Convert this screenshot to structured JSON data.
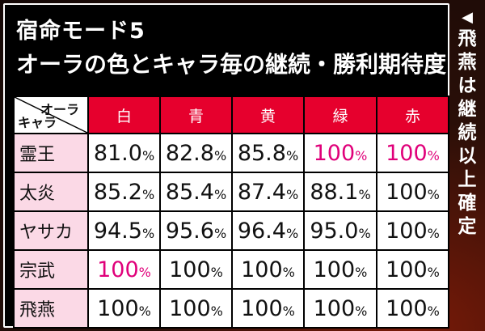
{
  "title_line1": "宿命モード5",
  "title_line2": "オーラの色とキャラ毎の継続・勝利期待度",
  "corner": {
    "aura_label": "オーラ",
    "chara_label": "キャラ"
  },
  "columns": [
    "白",
    "青",
    "黄",
    "緑",
    "赤"
  ],
  "rows": [
    {
      "label": "霊王",
      "cells": [
        {
          "num": "81.0",
          "pct": "%",
          "hot": false
        },
        {
          "num": "82.8",
          "pct": "%",
          "hot": false
        },
        {
          "num": "85.8",
          "pct": "%",
          "hot": false
        },
        {
          "num": "100",
          "pct": "%",
          "hot": true
        },
        {
          "num": "100",
          "pct": "%",
          "hot": true
        }
      ]
    },
    {
      "label": "太炎",
      "cells": [
        {
          "num": "85.2",
          "pct": "%",
          "hot": false
        },
        {
          "num": "85.4",
          "pct": "%",
          "hot": false
        },
        {
          "num": "87.4",
          "pct": "%",
          "hot": false
        },
        {
          "num": "88.1",
          "pct": "%",
          "hot": false
        },
        {
          "num": "100",
          "pct": "%",
          "hot": false
        }
      ]
    },
    {
      "label": "ヤサカ",
      "cells": [
        {
          "num": "94.5",
          "pct": "%",
          "hot": false
        },
        {
          "num": "95.6",
          "pct": "%",
          "hot": false
        },
        {
          "num": "96.4",
          "pct": "%",
          "hot": false
        },
        {
          "num": "95.0",
          "pct": "%",
          "hot": false
        },
        {
          "num": "100",
          "pct": "%",
          "hot": false
        }
      ]
    },
    {
      "label": "宗武",
      "cells": [
        {
          "num": "100",
          "pct": "%",
          "hot": true
        },
        {
          "num": "100",
          "pct": "%",
          "hot": false
        },
        {
          "num": "100",
          "pct": "%",
          "hot": false
        },
        {
          "num": "100",
          "pct": "%",
          "hot": false
        },
        {
          "num": "100",
          "pct": "%",
          "hot": false
        }
      ]
    },
    {
      "label": "飛燕",
      "cells": [
        {
          "num": "100",
          "pct": "%",
          "hot": false
        },
        {
          "num": "100",
          "pct": "%",
          "hot": false
        },
        {
          "num": "100",
          "pct": "%",
          "hot": false
        },
        {
          "num": "100",
          "pct": "%",
          "hot": false
        },
        {
          "num": "100",
          "pct": "%",
          "hot": false
        }
      ]
    }
  ],
  "side_note": {
    "marker": "◀",
    "text": "飛燕は継続以上確定"
  },
  "colors": {
    "header_red": "#e6002d",
    "label_pink": "#fbd9e6",
    "highlight_magenta": "#e0007a"
  }
}
